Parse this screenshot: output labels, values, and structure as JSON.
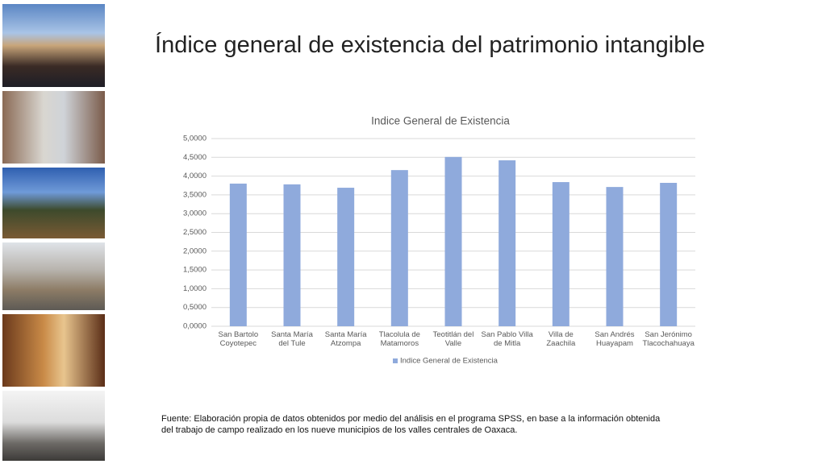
{
  "slide_title": "Índice general de existencia del patrimonio intangible",
  "chart_data": {
    "type": "bar",
    "title": "Indice General de Existencia",
    "categories": [
      "San Bartolo Coyotepec",
      "Santa María del Tule",
      "Santa María Atzompa",
      "Tlacolula de Matamoros",
      "Teotitlán del Valle",
      "San Pablo Villa de Mitla",
      "Villa de Zaachila",
      "San Andrés Huayapam",
      "San Jerónimo Tlacochahuaya"
    ],
    "series": [
      {
        "name": "Indice General de Existencia",
        "color": "#8faadc",
        "values": [
          3.8,
          3.78,
          3.69,
          4.16,
          4.51,
          4.42,
          3.84,
          3.71,
          3.82
        ]
      }
    ],
    "ylim": [
      0,
      5
    ],
    "yticks": [
      {
        "value": 0,
        "label": "0,0000"
      },
      {
        "value": 0.5,
        "label": "0,5000"
      },
      {
        "value": 1,
        "label": "1,0000"
      },
      {
        "value": 1.5,
        "label": "1,5000"
      },
      {
        "value": 2,
        "label": "2,0000"
      },
      {
        "value": 2.5,
        "label": "2,5000"
      },
      {
        "value": 3,
        "label": "3,0000"
      },
      {
        "value": 3.5,
        "label": "3,5000"
      },
      {
        "value": 4,
        "label": "4,0000"
      },
      {
        "value": 4.5,
        "label": "4,5000"
      },
      {
        "value": 5,
        "label": "5,0000"
      }
    ],
    "grid": true,
    "legend": "bottom"
  },
  "source": "Fuente: Elaboración propia de datos obtenidos por medio del  análisis en el programa SPSS, en base a la información obtenida del trabajo de campo realizado en los nueve municipios de los valles centrales de Oaxaca."
}
